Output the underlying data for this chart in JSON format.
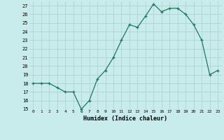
{
  "x": [
    0,
    1,
    2,
    3,
    4,
    5,
    6,
    7,
    8,
    9,
    10,
    11,
    12,
    13,
    14,
    15,
    16,
    17,
    18,
    19,
    20,
    21,
    22,
    23
  ],
  "y": [
    18,
    18,
    18,
    17.5,
    17,
    17,
    15,
    16,
    18.5,
    19.5,
    21,
    23,
    24.8,
    24.5,
    25.8,
    27.2,
    26.3,
    26.7,
    26.7,
    26,
    24.8,
    23,
    19,
    19.5
  ],
  "line_color": "#1a7a5e",
  "marker_color": "#1a7a5e",
  "bg_color": "#c8ecec",
  "grid_color": "#aacfcf",
  "xlabel": "Humidex (Indice chaleur)",
  "xlim": [
    -0.5,
    23.5
  ],
  "ylim": [
    15,
    27.5
  ],
  "yticks": [
    15,
    16,
    17,
    18,
    19,
    20,
    21,
    22,
    23,
    24,
    25,
    26,
    27
  ],
  "xticks": [
    0,
    1,
    2,
    3,
    4,
    5,
    6,
    7,
    8,
    9,
    10,
    11,
    12,
    13,
    14,
    15,
    16,
    17,
    18,
    19,
    20,
    21,
    22,
    23
  ]
}
